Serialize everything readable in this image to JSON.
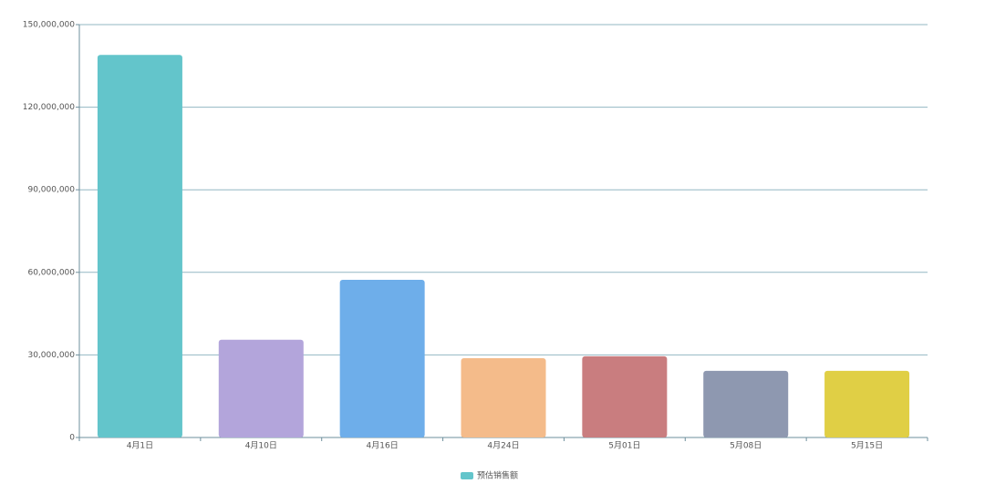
{
  "chart_data": {
    "type": "bar",
    "categories": [
      "4月1日",
      "4月10日",
      "4月16日",
      "4月24日",
      "5月01日",
      "5月08日",
      "5月15日"
    ],
    "series": [
      {
        "name": "预估销售额",
        "color": "#63c5cb",
        "values": [
          139000000,
          35500000,
          57300000,
          28800000,
          29500000,
          24200000,
          24200000
        ],
        "colors": [
          "#63c5cb",
          "#b3a5db",
          "#6eaeea",
          "#f4bb8a",
          "#c97d7f",
          "#8e98b0",
          "#e0cf45"
        ]
      }
    ],
    "ylim": [
      0,
      150000000
    ],
    "yticks": [
      0,
      {
        "value": 30000000,
        "label": "30,000,000"
      },
      {
        "value": 60000000,
        "label": "60,000,000"
      },
      {
        "value": 90000000,
        "label": "90,000,000"
      },
      {
        "value": 120000000,
        "label": "120,000,000"
      },
      {
        "value": 150000000,
        "label": "150,000,000"
      }
    ],
    "grid": true
  }
}
